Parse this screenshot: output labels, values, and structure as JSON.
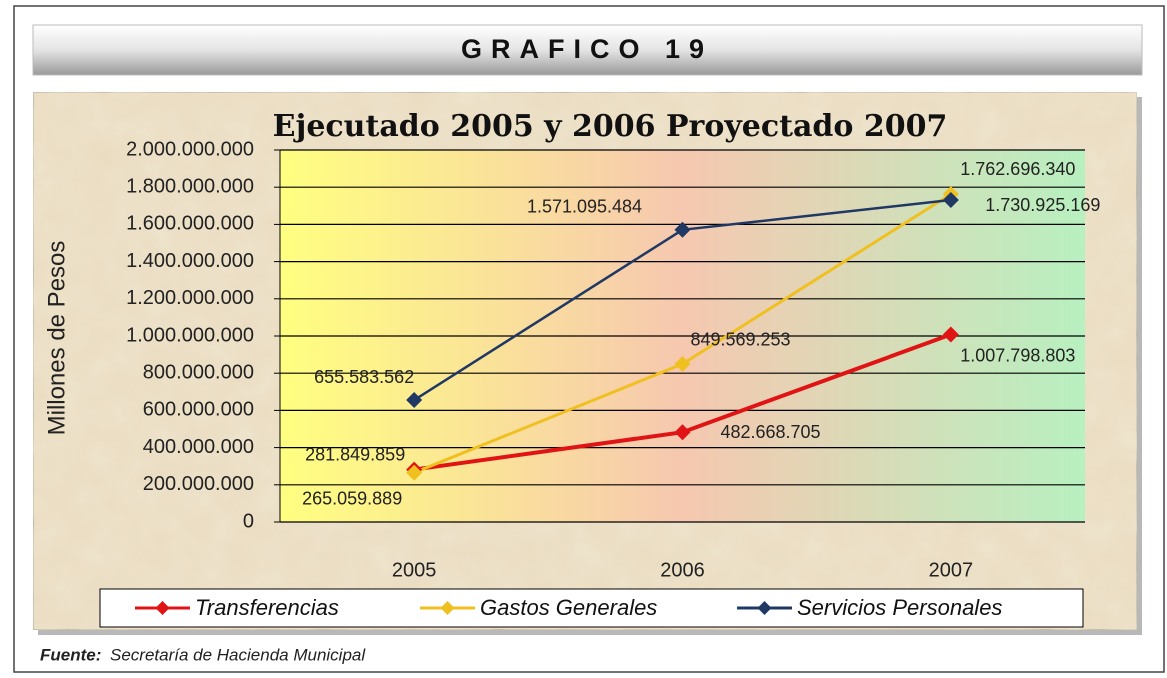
{
  "header": "GRAFICO 19",
  "chart_data": {
    "type": "line",
    "title": "Ejecutado 2005 y 2006 Proyectado 2007",
    "ylabel": "Millones de Pesos",
    "categories": [
      "2005",
      "2006",
      "2007"
    ],
    "series": [
      {
        "name": "Transferencias",
        "color": "#e01414",
        "values": [
          281849859,
          482668705,
          1007798803
        ],
        "value_labels": [
          "281.849.859",
          "482.668.705",
          "1.007.798.803"
        ]
      },
      {
        "name": "Gastos Generales",
        "color": "#f0c020",
        "values": [
          265059889,
          849569253,
          1762696340
        ],
        "value_labels": [
          "265.059.889",
          "849.569.253",
          "1.762.696.340"
        ]
      },
      {
        "name": "Servicios Personales",
        "color": "#1f3864",
        "values": [
          655583562,
          1571095484,
          1730925169
        ],
        "value_labels": [
          "655.583.562",
          "1.571.095.484",
          "1.730.925.169"
        ]
      }
    ],
    "ylim": [
      0,
      2000000000
    ],
    "yticks": [
      0,
      {
        "value": 200000000,
        "label": "200.000.000"
      },
      {
        "value": 400000000,
        "label": "400.000.000"
      },
      {
        "value": 600000000,
        "label": "600.000.000"
      },
      {
        "value": 800000000,
        "label": "800.000.000"
      },
      {
        "value": 1000000000,
        "label": "1.000.000.000"
      },
      {
        "value": 1200000000,
        "label": "1.200.000.000"
      },
      {
        "value": 1400000000,
        "label": "1.400.000.000"
      },
      {
        "value": 1600000000,
        "label": "1.600.000.000"
      },
      {
        "value": 1800000000,
        "label": "1.800.000.000"
      },
      {
        "value": 2000000000,
        "label": "2.000.000.000"
      }
    ],
    "grid": true,
    "legend": "bottom"
  },
  "source": {
    "label": "Fuente:",
    "text": "Secretaría de Hacienda Municipal"
  }
}
